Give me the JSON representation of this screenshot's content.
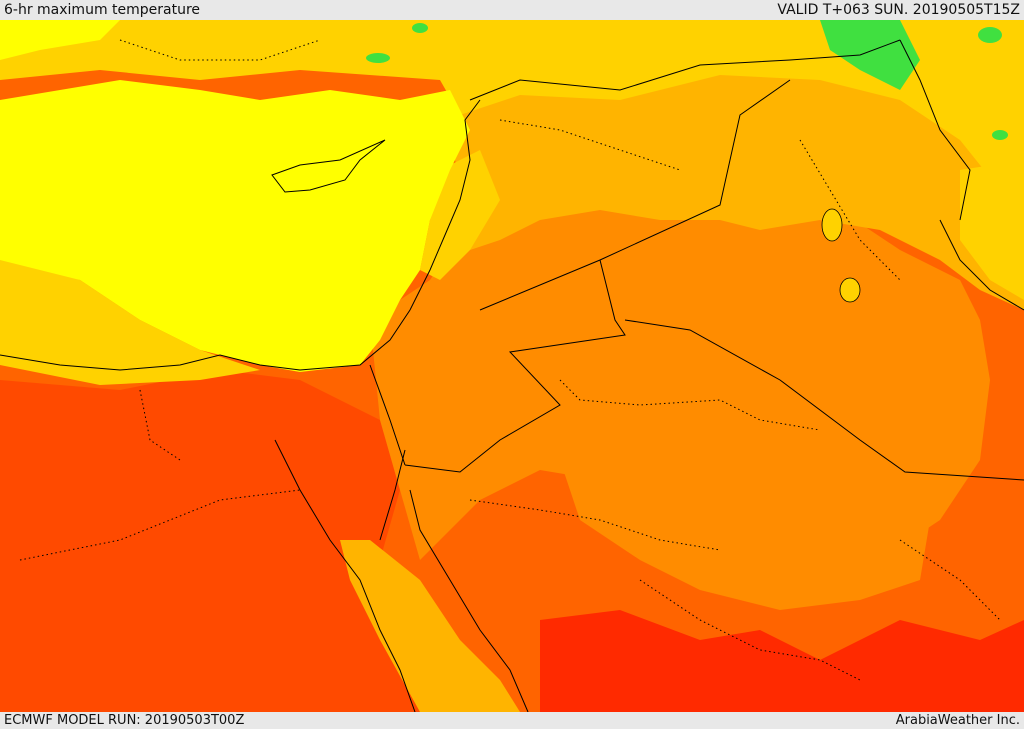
{
  "header": {
    "title": "6-hr maximum temperature",
    "valid": "VALID T+063 SUN. 20190505T15Z"
  },
  "footer": {
    "model_run": "ECMWF MODEL RUN: 20190503T00Z",
    "credit": "ArabiaWeather Inc."
  },
  "colors": {
    "ocean_cool": "#ffff00",
    "warm_yellow": "#ffd200",
    "amber": "#ffb400",
    "orange": "#ff8c00",
    "deep_orange": "#ff6400",
    "hot": "#ff4a00",
    "very_hot": "#ff2a00",
    "cool_green": "#40e040",
    "border": "#000000"
  },
  "map": {
    "layer": "temperature-shading",
    "icons": [
      "country-border-lines",
      "province-dotted-lines",
      "coastlines"
    ]
  }
}
